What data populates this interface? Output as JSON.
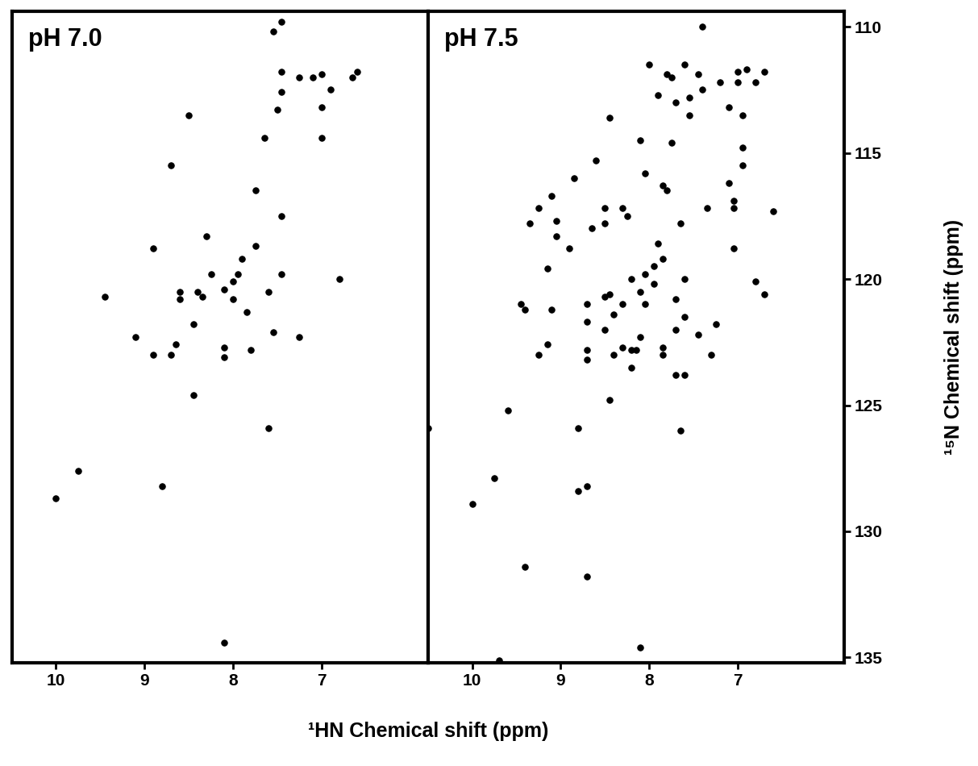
{
  "chart_data": [
    {
      "type": "scatter",
      "title": "pH 7.0",
      "color": "#000000",
      "marker": "o",
      "tick_labels": "x",
      "xlim": [
        10.5,
        5.8
      ],
      "xticks": [
        10,
        9,
        8,
        7
      ],
      "ylim": [
        135.2,
        109.4
      ],
      "x": [
        10.0,
        9.75,
        8.1,
        7.6,
        8.45,
        8.1,
        8.1,
        7.8,
        7.55,
        8.45,
        7.85,
        8.0,
        8.1,
        8.0,
        7.95,
        7.9,
        7.75,
        7.6,
        7.45,
        8.25,
        8.4,
        8.35,
        8.3,
        7.45,
        7.75,
        7.65,
        7.0,
        7.0,
        7.45,
        7.45,
        7.25,
        7.1,
        6.9,
        6.65,
        6.6,
        8.65,
        8.6,
        8.6,
        8.9,
        9.1,
        8.8,
        6.8,
        7.25,
        7.5,
        7.0,
        7.55,
        7.45,
        8.5,
        8.7,
        8.7,
        8.9,
        9.45
      ],
      "values": [
        128.7,
        127.6,
        134.4,
        125.9,
        124.6,
        122.7,
        123.1,
        122.8,
        122.1,
        121.8,
        121.3,
        120.8,
        120.4,
        120.1,
        119.8,
        119.2,
        118.7,
        120.5,
        119.8,
        119.8,
        120.5,
        120.7,
        118.3,
        117.5,
        116.5,
        114.4,
        114.4,
        113.2,
        112.6,
        111.8,
        112.0,
        112.0,
        112.5,
        112.0,
        111.8,
        122.6,
        120.8,
        120.5,
        118.8,
        122.3,
        128.2,
        120.0,
        122.3,
        113.3,
        111.9,
        110.2,
        109.8,
        113.5,
        115.5,
        123.0,
        123.0,
        120.7
      ]
    },
    {
      "type": "scatter",
      "title": "pH 7.5",
      "color": "#000000",
      "marker": "o",
      "tick_labels": true,
      "xlim": [
        10.5,
        5.8
      ],
      "xticks": [
        10,
        9,
        8,
        7
      ],
      "ylim": [
        135.2,
        109.4
      ],
      "yticks": [
        110,
        115,
        120,
        125,
        130,
        135
      ],
      "x": [
        6.6,
        6.8,
        6.7,
        6.95,
        6.95,
        6.95,
        7.05,
        7.05,
        7.1,
        7.1,
        7.05,
        7.2,
        7.25,
        7.3,
        7.35,
        7.4,
        7.4,
        7.45,
        7.45,
        7.55,
        7.55,
        7.6,
        7.6,
        7.6,
        7.6,
        7.7,
        7.7,
        7.65,
        7.65,
        7.7,
        7.7,
        7.75,
        7.75,
        7.8,
        7.8,
        7.85,
        7.85,
        7.85,
        7.85,
        7.9,
        7.9,
        7.95,
        7.95,
        8.0,
        8.05,
        8.05,
        8.05,
        8.1,
        8.1,
        8.1,
        8.15,
        8.2,
        8.2,
        8.2,
        8.1,
        8.25,
        8.3,
        8.3,
        8.3,
        8.4,
        8.4,
        8.45,
        8.5,
        8.5,
        8.5,
        8.5,
        8.45,
        8.45,
        8.65,
        8.7,
        8.7,
        8.7,
        8.7,
        8.7,
        8.7,
        8.8,
        8.8,
        8.85,
        8.6,
        8.9,
        9.05,
        9.05,
        9.1,
        9.1,
        9.15,
        9.15,
        9.25,
        9.25,
        9.35,
        9.4,
        9.45,
        9.4,
        9.6,
        9.75,
        9.7,
        10.0,
        10.5,
        6.7,
        6.8,
        6.9,
        7.0,
        7.0
      ],
      "values": [
        117.3,
        120.1,
        120.6,
        115.5,
        114.8,
        113.5,
        117.2,
        116.9,
        116.2,
        113.2,
        118.8,
        112.2,
        121.8,
        123.0,
        117.2,
        110.0,
        112.5,
        122.2,
        111.9,
        113.5,
        112.8,
        111.5,
        121.5,
        120.0,
        123.8,
        123.8,
        113.0,
        117.8,
        126.0,
        122.0,
        120.8,
        114.6,
        112.0,
        111.9,
        116.5,
        116.3,
        119.2,
        123.0,
        122.7,
        118.6,
        112.7,
        119.5,
        120.2,
        111.5,
        119.8,
        121.0,
        115.8,
        114.5,
        120.5,
        122.3,
        122.8,
        120.0,
        122.8,
        123.5,
        134.6,
        117.5,
        117.2,
        121.0,
        122.7,
        123.0,
        121.4,
        120.6,
        120.7,
        122.0,
        117.8,
        117.2,
        124.8,
        113.6,
        118.0,
        121.0,
        121.7,
        122.8,
        123.2,
        128.2,
        131.8,
        125.9,
        128.4,
        116.0,
        115.3,
        118.8,
        117.7,
        118.3,
        116.7,
        121.2,
        119.6,
        122.6,
        117.2,
        123.0,
        117.8,
        121.2,
        121.0,
        131.4,
        125.2,
        127.9,
        135.1,
        128.9,
        125.9,
        111.8,
        112.2,
        111.7,
        111.8,
        112.2
      ]
    }
  ],
  "xlabel": "¹HN Chemical shift (ppm)",
  "ylabel": "¹⁵N Chemical shift (ppm)"
}
